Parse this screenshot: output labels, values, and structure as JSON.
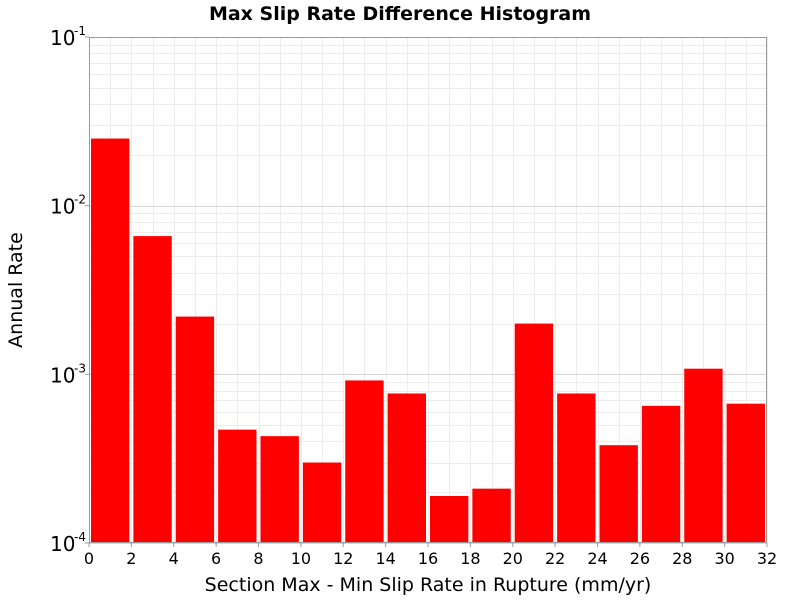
{
  "chart_data": {
    "type": "bar",
    "title": "Max Slip Rate Difference Histogram",
    "xlabel": "Section Max - Min Slip Rate in Rupture (mm/yr)",
    "ylabel": "Annual Rate",
    "xlim": [
      0,
      32
    ],
    "ylim": [
      0.0001,
      0.1
    ],
    "yscale": "log",
    "grid": true,
    "bar_color": "#ff0000",
    "bin_width": 2,
    "x_ticks": [
      "0",
      "2",
      "4",
      "6",
      "8",
      "10",
      "12",
      "14",
      "16",
      "18",
      "20",
      "22",
      "24",
      "26",
      "28",
      "30",
      "32"
    ],
    "y_ticks": [
      {
        "base": "10",
        "exp": "-4",
        "value": 0.0001
      },
      {
        "base": "10",
        "exp": "-3",
        "value": 0.001
      },
      {
        "base": "10",
        "exp": "-2",
        "value": 0.01
      },
      {
        "base": "10",
        "exp": "-1",
        "value": 0.1
      }
    ],
    "bins": [
      {
        "x": 1,
        "value": 0.025
      },
      {
        "x": 3,
        "value": 0.0066
      },
      {
        "x": 5,
        "value": 0.0022
      },
      {
        "x": 7,
        "value": 0.00047
      },
      {
        "x": 9,
        "value": 0.00043
      },
      {
        "x": 11,
        "value": 0.0003
      },
      {
        "x": 13,
        "value": 0.00092
      },
      {
        "x": 15,
        "value": 0.00077
      },
      {
        "x": 17,
        "value": 0.00019
      },
      {
        "x": 19,
        "value": 0.00021
      },
      {
        "x": 21,
        "value": 0.002
      },
      {
        "x": 23,
        "value": 0.00077
      },
      {
        "x": 25,
        "value": 0.00038
      },
      {
        "x": 27,
        "value": 0.00065
      },
      {
        "x": 29,
        "value": 0.00108
      },
      {
        "x": 31,
        "value": 0.00067
      }
    ]
  }
}
